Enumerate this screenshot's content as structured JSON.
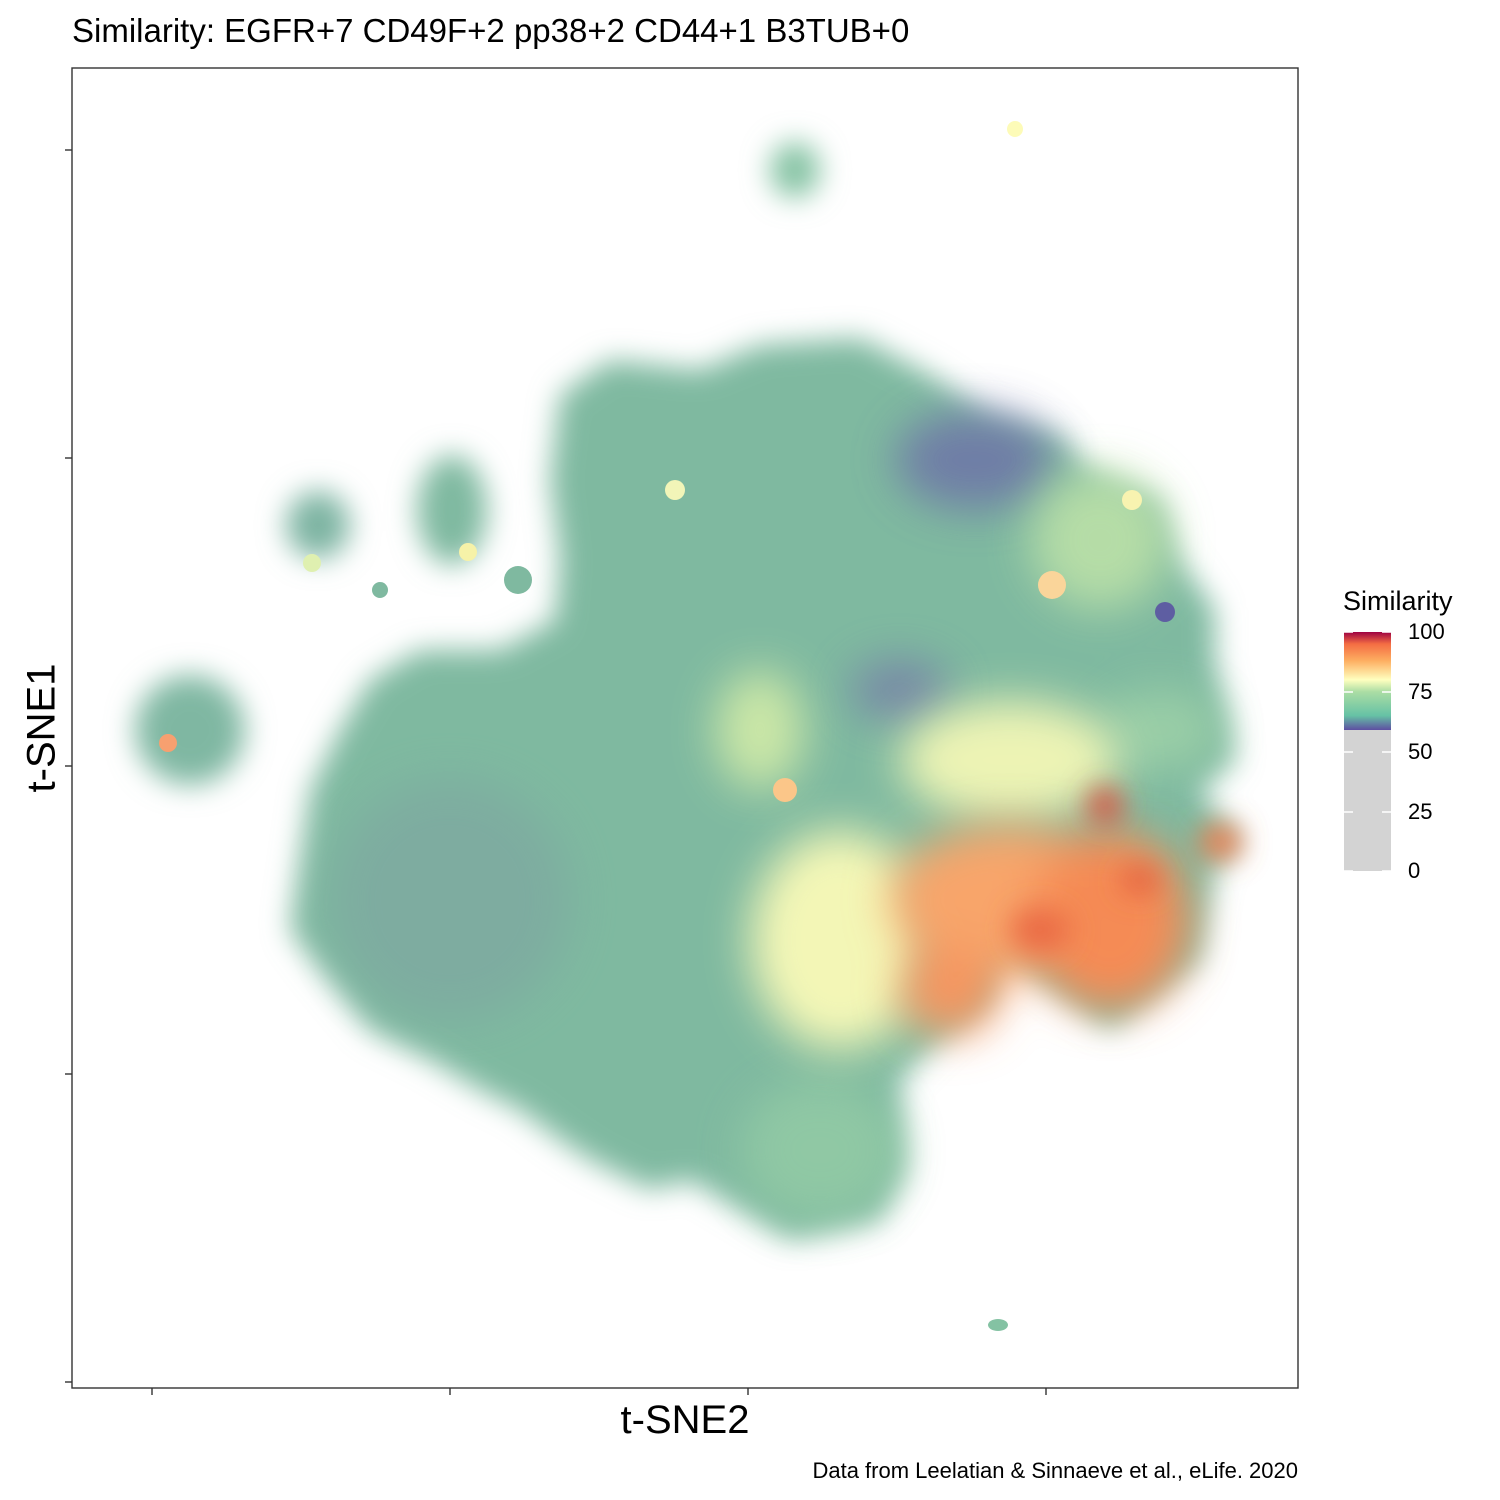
{
  "chart_data": {
    "type": "scatter",
    "title": "Similarity: EGFR+7 CD49F+2 pp38+2 CD44+1 B3TUB+0",
    "xlabel": "t-SNE2",
    "ylabel": "t-SNE1",
    "x_tick_labels": [],
    "y_tick_labels": [],
    "grid": false,
    "legend": {
      "title": "Similarity",
      "position": "right",
      "ticks": [
        "100",
        "75",
        "50",
        "25",
        "0"
      ],
      "colorbar_range": [
        0,
        100
      ],
      "color_stops": [
        {
          "value": 0,
          "color": "#d3d3d3"
        },
        {
          "value": 59,
          "color": "#d3d3d3"
        },
        {
          "value": 60,
          "color": "#5e4fa2"
        },
        {
          "value": 66,
          "color": "#66c2a5"
        },
        {
          "value": 75,
          "color": "#abdda4"
        },
        {
          "value": 80,
          "color": "#ffffbf"
        },
        {
          "value": 88,
          "color": "#fdae61"
        },
        {
          "value": 95,
          "color": "#f46d43"
        },
        {
          "value": 100,
          "color": "#9e0142"
        }
      ]
    },
    "caption": "Data from Leelatian & Sinnaeve et al., eLife. 2020",
    "colors": {
      "low": "#5e4fa2",
      "mid_low": "#66c2a5",
      "mid": "#ffffbf",
      "high": "#f46d43",
      "max": "#9e0142",
      "below_threshold": "#d3d3d3"
    }
  }
}
